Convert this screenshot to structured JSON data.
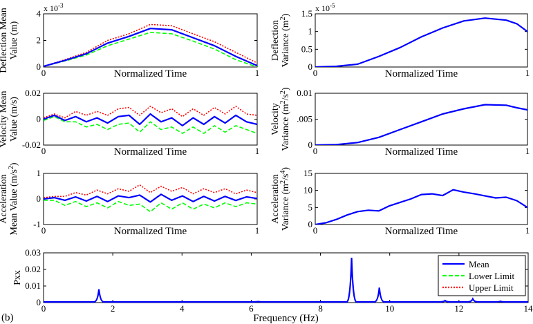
{
  "figure": {
    "label": "(b)"
  },
  "colors": {
    "mean": "#0000ff",
    "lower": "#00ff00",
    "upper": "#ff0000",
    "axes": "#000000"
  },
  "chart_data": [
    {
      "id": "deflection-mean",
      "type": "line",
      "xlabel": "Normalized Time",
      "ylabel_lines": [
        "Deflection Mean",
        "Value (m)"
      ],
      "exponent": "x 10",
      "exponent_power": "-3",
      "xlim": [
        0,
        1
      ],
      "ylim": [
        0,
        4
      ],
      "xticks": [
        0,
        1
      ],
      "yticks": [
        0,
        2,
        4
      ],
      "x": [
        0,
        0.1,
        0.2,
        0.3,
        0.4,
        0.5,
        0.6,
        0.7,
        0.8,
        0.9,
        1.0
      ],
      "series": [
        {
          "role": "mean",
          "values": [
            0.05,
            0.5,
            1.0,
            1.8,
            2.3,
            2.9,
            2.8,
            2.2,
            1.6,
            0.8,
            0.1
          ]
        },
        {
          "role": "lower",
          "values": [
            0.05,
            0.45,
            0.9,
            1.6,
            2.1,
            2.6,
            2.5,
            1.95,
            1.35,
            0.55,
            0.0
          ]
        },
        {
          "role": "upper",
          "values": [
            0.05,
            0.55,
            1.1,
            2.0,
            2.5,
            3.2,
            3.1,
            2.5,
            1.9,
            1.1,
            0.3
          ]
        }
      ]
    },
    {
      "id": "deflection-variance",
      "type": "line",
      "xlabel": "Normalized Time",
      "ylabel_lines": [
        "Deflection",
        "Variance (m",
        ")"
      ],
      "ylabel_sup": "2",
      "exponent": "x 10",
      "exponent_power": "-5",
      "xlim": [
        0,
        1
      ],
      "ylim": [
        0,
        1.5
      ],
      "xticks": [
        0,
        1
      ],
      "yticks": [
        0,
        0.5,
        1,
        1.5
      ],
      "x": [
        0,
        0.1,
        0.2,
        0.3,
        0.4,
        0.5,
        0.6,
        0.7,
        0.8,
        0.9,
        0.95,
        1.0
      ],
      "series": [
        {
          "role": "mean",
          "values": [
            0,
            0.02,
            0.08,
            0.3,
            0.55,
            0.85,
            1.1,
            1.3,
            1.38,
            1.32,
            1.22,
            1.0
          ]
        }
      ]
    },
    {
      "id": "velocity-mean",
      "type": "line",
      "xlabel": "Normalized Time",
      "ylabel_lines": [
        "Velocity Mean",
        "Value (m/s)"
      ],
      "xlim": [
        0,
        1
      ],
      "ylim": [
        -0.02,
        0.02
      ],
      "xticks": [
        0,
        1
      ],
      "yticks": [
        -0.02,
        0,
        0.02
      ],
      "x": [
        0,
        0.05,
        0.1,
        0.15,
        0.2,
        0.25,
        0.3,
        0.35,
        0.4,
        0.45,
        0.5,
        0.55,
        0.6,
        0.65,
        0.7,
        0.75,
        0.8,
        0.85,
        0.9,
        0.95,
        1.0
      ],
      "series": [
        {
          "role": "mean",
          "values": [
            0,
            0.003,
            -0.001,
            0.002,
            -0.002,
            0.001,
            -0.003,
            0.002,
            0.003,
            -0.004,
            0.004,
            -0.002,
            0.001,
            -0.005,
            0.001,
            -0.004,
            0.002,
            -0.003,
            0.003,
            -0.002,
            -0.004
          ]
        },
        {
          "role": "lower",
          "values": [
            -0.001,
            0.002,
            -0.002,
            -0.002,
            -0.006,
            -0.004,
            -0.008,
            -0.004,
            -0.003,
            -0.01,
            -0.002,
            -0.008,
            -0.006,
            -0.011,
            -0.006,
            -0.011,
            -0.005,
            -0.01,
            -0.005,
            -0.008,
            -0.011
          ]
        },
        {
          "role": "upper",
          "values": [
            0.001,
            0.004,
            0.001,
            0.006,
            0.003,
            0.006,
            0.003,
            0.008,
            0.009,
            0.003,
            0.01,
            0.005,
            0.008,
            0.002,
            0.008,
            0.003,
            0.009,
            0.004,
            0.01,
            0.004,
            0.003
          ]
        }
      ]
    },
    {
      "id": "velocity-variance",
      "type": "line",
      "xlabel": "Normalized Time",
      "ylabel_lines": [
        "Velocity",
        "Variance (m",
        "/s",
        ")"
      ],
      "ylabel_sup": "2",
      "xlim": [
        0,
        1
      ],
      "ylim": [
        0,
        0.01
      ],
      "xticks": [
        0,
        1
      ],
      "yticks": [
        0,
        0.005,
        0.01
      ],
      "ytick_labels": [
        "0",
        ".005",
        "0.01"
      ],
      "x": [
        0,
        0.1,
        0.2,
        0.3,
        0.4,
        0.5,
        0.6,
        0.7,
        0.8,
        0.9,
        0.95,
        1.0
      ],
      "series": [
        {
          "role": "mean",
          "values": [
            0,
            0.0001,
            0.0005,
            0.0015,
            0.003,
            0.0045,
            0.006,
            0.007,
            0.0078,
            0.0077,
            0.0072,
            0.0068
          ]
        }
      ]
    },
    {
      "id": "acceleration-mean",
      "type": "line",
      "xlabel": "Normalized Time",
      "ylabel_lines": [
        "Acceleration",
        "Mean Value (m/s",
        ")"
      ],
      "ylabel_sup": "2",
      "xlim": [
        0,
        1
      ],
      "ylim": [
        -1,
        1
      ],
      "xticks": [
        0,
        1
      ],
      "yticks": [
        -1,
        0,
        1
      ],
      "x": [
        0,
        0.05,
        0.1,
        0.15,
        0.2,
        0.25,
        0.3,
        0.35,
        0.4,
        0.45,
        0.5,
        0.55,
        0.6,
        0.65,
        0.7,
        0.75,
        0.8,
        0.85,
        0.9,
        0.95,
        1.0
      ],
      "series": [
        {
          "role": "mean",
          "values": [
            0,
            0.05,
            -0.05,
            0.08,
            -0.08,
            0.1,
            -0.1,
            0.12,
            0.05,
            0.15,
            -0.12,
            0.18,
            -0.05,
            0.12,
            -0.1,
            0.1,
            -0.08,
            0.1,
            -0.06,
            0.08,
            0.02
          ]
        },
        {
          "role": "lower",
          "values": [
            -0.05,
            -0.05,
            -0.25,
            -0.1,
            -0.3,
            -0.15,
            -0.35,
            -0.1,
            -0.25,
            -0.2,
            -0.5,
            -0.15,
            -0.4,
            -0.15,
            -0.4,
            -0.2,
            -0.35,
            -0.15,
            -0.3,
            -0.15,
            -0.2
          ]
        },
        {
          "role": "upper",
          "values": [
            0.05,
            0.1,
            0.1,
            0.25,
            0.15,
            0.35,
            0.2,
            0.4,
            0.3,
            0.55,
            0.25,
            0.5,
            0.3,
            0.45,
            0.2,
            0.4,
            0.25,
            0.4,
            0.2,
            0.35,
            0.25
          ]
        }
      ]
    },
    {
      "id": "acceleration-variance",
      "type": "line",
      "xlabel": "Normalized Time",
      "ylabel_lines": [
        "Acceleration",
        "Variance (m",
        "/s",
        ")"
      ],
      "ylabel_sup": "2",
      "ylabel_sup2": "4",
      "xlim": [
        0,
        1
      ],
      "ylim": [
        0,
        15
      ],
      "xticks": [
        0,
        1
      ],
      "yticks": [
        0,
        5,
        10,
        15
      ],
      "x": [
        0,
        0.05,
        0.1,
        0.15,
        0.2,
        0.25,
        0.3,
        0.35,
        0.4,
        0.45,
        0.5,
        0.55,
        0.6,
        0.65,
        0.7,
        0.75,
        0.8,
        0.85,
        0.9,
        0.95,
        1.0
      ],
      "series": [
        {
          "role": "mean",
          "values": [
            0,
            0.5,
            1.5,
            2.8,
            3.8,
            4.2,
            4.0,
            5.5,
            6.5,
            7.5,
            8.8,
            9.0,
            8.5,
            10.2,
            9.5,
            9.0,
            8.4,
            7.8,
            8.0,
            7.0,
            5.0
          ]
        }
      ]
    },
    {
      "id": "pxx-spectrum",
      "type": "line",
      "xlabel": "Frequency (Hz)",
      "ylabel_lines": [
        "Pxx"
      ],
      "xlim": [
        0,
        14
      ],
      "ylim": [
        0,
        0.03
      ],
      "xticks": [
        0,
        2,
        4,
        6,
        8,
        10,
        12,
        14
      ],
      "yticks": [
        0,
        0.01,
        0.02,
        0.03
      ],
      "peaks": [
        {
          "f": 1.6,
          "pxx": 0.008
        },
        {
          "f": 6.2,
          "pxx": 0.0006
        },
        {
          "f": 7.9,
          "pxx": 0.0005
        },
        {
          "f": 8.9,
          "pxx": 0.027
        },
        {
          "f": 9.7,
          "pxx": 0.009
        },
        {
          "f": 11.6,
          "pxx": 0.0012
        },
        {
          "f": 12.4,
          "pxx": 0.0022
        },
        {
          "f": 13.2,
          "pxx": 0.0008
        }
      ],
      "legend": {
        "position": "top-right",
        "entries": [
          {
            "role": "mean",
            "label": "Mean"
          },
          {
            "role": "lower",
            "label": "Lower Limit"
          },
          {
            "role": "upper",
            "label": "Upper Limit"
          }
        ]
      }
    }
  ]
}
